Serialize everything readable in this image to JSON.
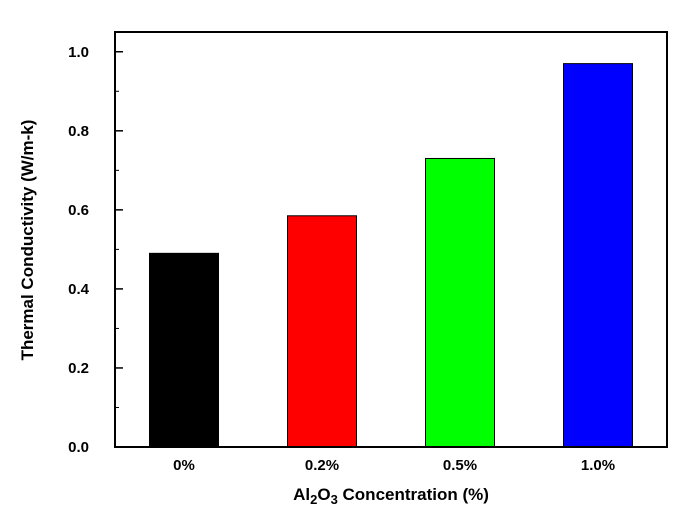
{
  "chart_data": {
    "type": "bar",
    "categories": [
      "0%",
      "0.2%",
      "0.5%",
      "1.0%"
    ],
    "values": [
      0.49,
      0.585,
      0.73,
      0.97
    ],
    "colors": [
      "#000000",
      "#ff0000",
      "#00ff00",
      "#0000ff"
    ],
    "xlabel_parts": {
      "a": "Al",
      "b": "2",
      "c": "O",
      "d": "3",
      "e": " Concentration (%)"
    },
    "ylabel": "Thermal Conductivity (W/m-k)",
    "ylim": [
      0,
      1.05
    ],
    "yticks": [
      "0.0",
      "0.2",
      "0.4",
      "0.6",
      "0.8",
      "1.0"
    ],
    "ytick_values": [
      0,
      0.2,
      0.4,
      0.6,
      0.8,
      1.0
    ],
    "grid": false,
    "legend": "none"
  }
}
